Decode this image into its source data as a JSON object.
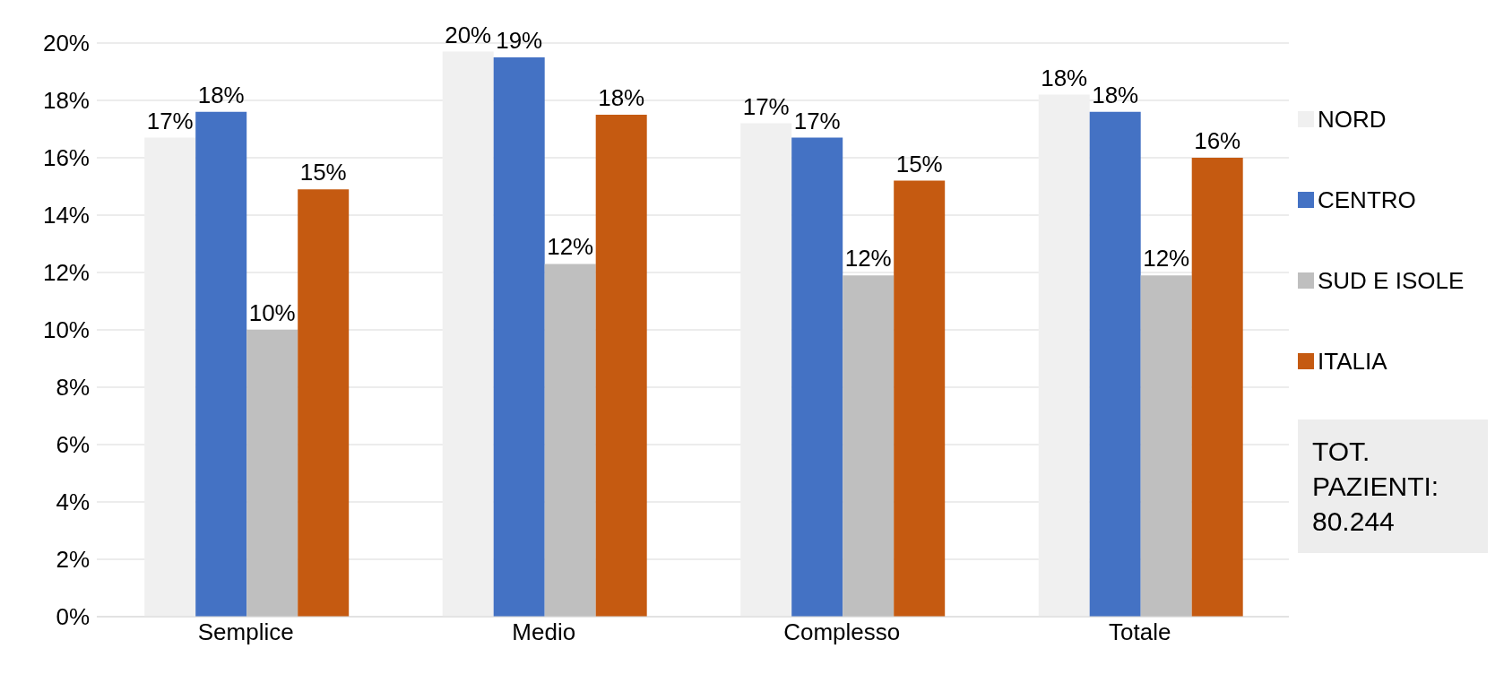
{
  "chart_data": {
    "type": "bar",
    "categories": [
      "Semplice",
      "Medio",
      "Complesso",
      "Totale"
    ],
    "series": [
      {
        "name": "NORD",
        "color": "#f0f0f0",
        "values": [
          16.7,
          19.7,
          17.2,
          18.2
        ],
        "value_labels": [
          "17%",
          "20%",
          "17%",
          "18%"
        ]
      },
      {
        "name": "CENTRO",
        "color": "#4472c4",
        "values": [
          17.6,
          19.5,
          16.7,
          17.6
        ],
        "value_labels": [
          "18%",
          "19%",
          "17%",
          "18%"
        ]
      },
      {
        "name": "SUD E ISOLE",
        "color": "#bfbfbf",
        "values": [
          10.0,
          12.3,
          11.9,
          11.9
        ],
        "value_labels": [
          "10%",
          "12%",
          "12%",
          "12%"
        ]
      },
      {
        "name": "ITALIA",
        "color": "#c55a11",
        "values": [
          14.9,
          17.5,
          15.2,
          16.0
        ],
        "value_labels": [
          "15%",
          "18%",
          "15%",
          "16%"
        ]
      }
    ],
    "ylim": [
      0,
      20
    ],
    "yticks": [
      {
        "value": 0,
        "label": "0%"
      },
      {
        "value": 2,
        "label": "2%"
      },
      {
        "value": 4,
        "label": "4%"
      },
      {
        "value": 6,
        "label": "6%"
      },
      {
        "value": 8,
        "label": "8%"
      },
      {
        "value": 10,
        "label": "10%"
      },
      {
        "value": 12,
        "label": "12%"
      },
      {
        "value": 14,
        "label": "14%"
      },
      {
        "value": 16,
        "label": "16%"
      },
      {
        "value": 18,
        "label": "18%"
      },
      {
        "value": 20,
        "label": "20%"
      }
    ],
    "grid": "y",
    "legend": "right",
    "annotations": [
      "TOT. PAZIENTI: 80.244"
    ]
  }
}
